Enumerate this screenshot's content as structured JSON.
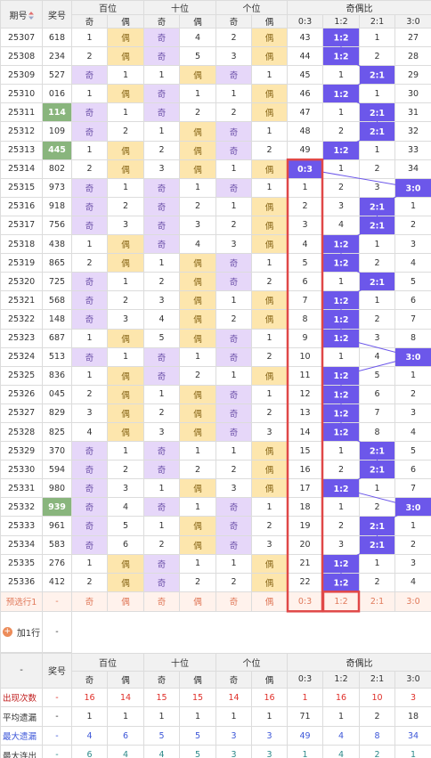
{
  "header": {
    "period_label": "期号",
    "number_label": "奖号",
    "hundreds_label": "百位",
    "tens_label": "十位",
    "units_label": "个位",
    "ratio_label": "奇偶比",
    "odd_label": "奇",
    "even_label": "偶",
    "ratio_cols": [
      "0:3",
      "1:2",
      "2:1",
      "3:0"
    ]
  },
  "rows": [
    {
      "period": "25307",
      "number": "618",
      "hl": false,
      "h": [
        "1",
        "偶"
      ],
      "t": [
        "奇",
        "4"
      ],
      "u": [
        "2",
        "偶"
      ],
      "r": [
        "43",
        "1:2",
        "1",
        "27"
      ],
      "rsel": 1
    },
    {
      "period": "25308",
      "number": "234",
      "hl": false,
      "h": [
        "2",
        "偶"
      ],
      "t": [
        "奇",
        "5"
      ],
      "u": [
        "3",
        "偶"
      ],
      "r": [
        "44",
        "1:2",
        "2",
        "28"
      ],
      "rsel": 1
    },
    {
      "period": "25309",
      "number": "527",
      "hl": false,
      "h": [
        "奇",
        "1"
      ],
      "t": [
        "1",
        "偶"
      ],
      "u": [
        "奇",
        "1"
      ],
      "r": [
        "45",
        "1",
        "2:1",
        "29"
      ],
      "rsel": 2
    },
    {
      "period": "25310",
      "number": "016",
      "hl": false,
      "h": [
        "1",
        "偶"
      ],
      "t": [
        "奇",
        "1"
      ],
      "u": [
        "1",
        "偶"
      ],
      "r": [
        "46",
        "1:2",
        "1",
        "30"
      ],
      "rsel": 1
    },
    {
      "period": "25311",
      "number": "114",
      "hl": true,
      "h": [
        "奇",
        "1"
      ],
      "t": [
        "奇",
        "2"
      ],
      "u": [
        "2",
        "偶"
      ],
      "r": [
        "47",
        "1",
        "2:1",
        "31"
      ],
      "rsel": 2
    },
    {
      "period": "25312",
      "number": "109",
      "hl": false,
      "h": [
        "奇",
        "2"
      ],
      "t": [
        "1",
        "偶"
      ],
      "u": [
        "奇",
        "1"
      ],
      "r": [
        "48",
        "2",
        "2:1",
        "32"
      ],
      "rsel": 2
    },
    {
      "period": "25313",
      "number": "445",
      "hl": true,
      "h": [
        "1",
        "偶"
      ],
      "t": [
        "2",
        "偶"
      ],
      "u": [
        "奇",
        "2"
      ],
      "r": [
        "49",
        "1:2",
        "1",
        "33"
      ],
      "rsel": 1
    },
    {
      "period": "25314",
      "number": "802",
      "hl": false,
      "h": [
        "2",
        "偶"
      ],
      "t": [
        "3",
        "偶"
      ],
      "u": [
        "1",
        "偶"
      ],
      "r": [
        "0:3",
        "1",
        "2",
        "34"
      ],
      "rsel": 0
    },
    {
      "period": "25315",
      "number": "973",
      "hl": false,
      "h": [
        "奇",
        "1"
      ],
      "t": [
        "奇",
        "1"
      ],
      "u": [
        "奇",
        "1"
      ],
      "r": [
        "1",
        "2",
        "3",
        "3:0"
      ],
      "rsel": 3
    },
    {
      "period": "25316",
      "number": "918",
      "hl": false,
      "h": [
        "奇",
        "2"
      ],
      "t": [
        "奇",
        "2"
      ],
      "u": [
        "1",
        "偶"
      ],
      "r": [
        "2",
        "3",
        "2:1",
        "1"
      ],
      "rsel": 2
    },
    {
      "period": "25317",
      "number": "756",
      "hl": false,
      "h": [
        "奇",
        "3"
      ],
      "t": [
        "奇",
        "3"
      ],
      "u": [
        "2",
        "偶"
      ],
      "r": [
        "3",
        "4",
        "2:1",
        "2"
      ],
      "rsel": 2
    },
    {
      "period": "25318",
      "number": "438",
      "hl": false,
      "h": [
        "1",
        "偶"
      ],
      "t": [
        "奇",
        "4"
      ],
      "u": [
        "3",
        "偶"
      ],
      "r": [
        "4",
        "1:2",
        "1",
        "3"
      ],
      "rsel": 1
    },
    {
      "period": "25319",
      "number": "865",
      "hl": false,
      "h": [
        "2",
        "偶"
      ],
      "t": [
        "1",
        "偶"
      ],
      "u": [
        "奇",
        "1"
      ],
      "r": [
        "5",
        "1:2",
        "2",
        "4"
      ],
      "rsel": 1
    },
    {
      "period": "25320",
      "number": "725",
      "hl": false,
      "h": [
        "奇",
        "1"
      ],
      "t": [
        "2",
        "偶"
      ],
      "u": [
        "奇",
        "2"
      ],
      "r": [
        "6",
        "1",
        "2:1",
        "5"
      ],
      "rsel": 2
    },
    {
      "period": "25321",
      "number": "568",
      "hl": false,
      "h": [
        "奇",
        "2"
      ],
      "t": [
        "3",
        "偶"
      ],
      "u": [
        "1",
        "偶"
      ],
      "r": [
        "7",
        "1:2",
        "1",
        "6"
      ],
      "rsel": 1
    },
    {
      "period": "25322",
      "number": "148",
      "hl": false,
      "h": [
        "奇",
        "3"
      ],
      "t": [
        "4",
        "偶"
      ],
      "u": [
        "2",
        "偶"
      ],
      "r": [
        "8",
        "1:2",
        "2",
        "7"
      ],
      "rsel": 1
    },
    {
      "period": "25323",
      "number": "687",
      "hl": false,
      "h": [
        "1",
        "偶"
      ],
      "t": [
        "5",
        "偶"
      ],
      "u": [
        "奇",
        "1"
      ],
      "r": [
        "9",
        "1:2",
        "3",
        "8"
      ],
      "rsel": 1
    },
    {
      "period": "25324",
      "number": "513",
      "hl": false,
      "h": [
        "奇",
        "1"
      ],
      "t": [
        "奇",
        "1"
      ],
      "u": [
        "奇",
        "2"
      ],
      "r": [
        "10",
        "1",
        "4",
        "3:0"
      ],
      "rsel": 3
    },
    {
      "period": "25325",
      "number": "836",
      "hl": false,
      "h": [
        "1",
        "偶"
      ],
      "t": [
        "奇",
        "2"
      ],
      "u": [
        "1",
        "偶"
      ],
      "r": [
        "11",
        "1:2",
        "5",
        "1"
      ],
      "rsel": 1
    },
    {
      "period": "25326",
      "number": "045",
      "hl": false,
      "h": [
        "2",
        "偶"
      ],
      "t": [
        "1",
        "偶"
      ],
      "u": [
        "奇",
        "1"
      ],
      "r": [
        "12",
        "1:2",
        "6",
        "2"
      ],
      "rsel": 1
    },
    {
      "period": "25327",
      "number": "829",
      "hl": false,
      "h": [
        "3",
        "偶"
      ],
      "t": [
        "2",
        "偶"
      ],
      "u": [
        "奇",
        "2"
      ],
      "r": [
        "13",
        "1:2",
        "7",
        "3"
      ],
      "rsel": 1
    },
    {
      "period": "25328",
      "number": "825",
      "hl": false,
      "h": [
        "4",
        "偶"
      ],
      "t": [
        "3",
        "偶"
      ],
      "u": [
        "奇",
        "3"
      ],
      "r": [
        "14",
        "1:2",
        "8",
        "4"
      ],
      "rsel": 1
    },
    {
      "period": "25329",
      "number": "370",
      "hl": false,
      "h": [
        "奇",
        "1"
      ],
      "t": [
        "奇",
        "1"
      ],
      "u": [
        "1",
        "偶"
      ],
      "r": [
        "15",
        "1",
        "2:1",
        "5"
      ],
      "rsel": 2
    },
    {
      "period": "25330",
      "number": "594",
      "h": [
        "奇",
        "2"
      ],
      "t": [
        "奇",
        "2"
      ],
      "u": [
        "2",
        "偶"
      ],
      "r": [
        "16",
        "2",
        "2:1",
        "6"
      ],
      "rsel": 2,
      "hl": false
    },
    {
      "period": "25331",
      "number": "980",
      "hl": false,
      "h": [
        "奇",
        "3"
      ],
      "t": [
        "1",
        "偶"
      ],
      "u": [
        "3",
        "偶"
      ],
      "r": [
        "17",
        "1:2",
        "1",
        "7"
      ],
      "rsel": 1
    },
    {
      "period": "25332",
      "number": "939",
      "hl": true,
      "h": [
        "奇",
        "4"
      ],
      "t": [
        "奇",
        "1"
      ],
      "u": [
        "奇",
        "1"
      ],
      "r": [
        "18",
        "1",
        "2",
        "3:0"
      ],
      "rsel": 3
    },
    {
      "period": "25333",
      "number": "961",
      "hl": false,
      "h": [
        "奇",
        "5"
      ],
      "t": [
        "1",
        "偶"
      ],
      "u": [
        "奇",
        "2"
      ],
      "r": [
        "19",
        "2",
        "2:1",
        "1"
      ],
      "rsel": 2
    },
    {
      "period": "25334",
      "number": "583",
      "hl": false,
      "h": [
        "奇",
        "6"
      ],
      "t": [
        "2",
        "偶"
      ],
      "u": [
        "奇",
        "3"
      ],
      "r": [
        "20",
        "3",
        "2:1",
        "2"
      ],
      "rsel": 2
    },
    {
      "period": "25335",
      "number": "276",
      "hl": false,
      "h": [
        "1",
        "偶"
      ],
      "t": [
        "奇",
        "1"
      ],
      "u": [
        "1",
        "偶"
      ],
      "r": [
        "21",
        "1:2",
        "1",
        "3"
      ],
      "rsel": 1
    },
    {
      "period": "25336",
      "number": "412",
      "hl": false,
      "h": [
        "2",
        "偶"
      ],
      "t": [
        "奇",
        "2"
      ],
      "u": [
        "2",
        "偶"
      ],
      "r": [
        "22",
        "1:2",
        "2",
        "4"
      ],
      "rsel": 1
    }
  ],
  "prediction": {
    "label": "预选行1",
    "number": "-",
    "cells": [
      "奇",
      "偶",
      "奇",
      "偶",
      "奇",
      "偶",
      "0:3",
      "1:2",
      "2:1",
      "3:0"
    ]
  },
  "add_row": {
    "label": "加1行",
    "number": "-"
  },
  "stats_header": {
    "first_label": "-",
    "number_label": "奖号",
    "hundreds_label": "百位",
    "tens_label": "十位",
    "units_label": "个位",
    "ratio_label": "奇偶比",
    "sub": [
      "奇",
      "偶",
      "奇",
      "偶",
      "奇",
      "偶",
      "0:3",
      "1:2",
      "2:1",
      "3:0"
    ]
  },
  "stats": [
    {
      "label": "出现次数",
      "number": "-",
      "values": [
        "16",
        "14",
        "15",
        "15",
        "14",
        "16",
        "1",
        "16",
        "10",
        "3"
      ]
    },
    {
      "label": "平均遗漏",
      "number": "-",
      "values": [
        "1",
        "1",
        "1",
        "1",
        "1",
        "1",
        "71",
        "1",
        "2",
        "18"
      ]
    },
    {
      "label": "最大遗漏",
      "number": "-",
      "values": [
        "4",
        "6",
        "5",
        "5",
        "3",
        "3",
        "49",
        "4",
        "8",
        "34"
      ]
    },
    {
      "label": "最大连出",
      "number": "-",
      "values": [
        "6",
        "4",
        "4",
        "5",
        "3",
        "3",
        "1",
        "4",
        "2",
        "1"
      ]
    }
  ],
  "colors": {
    "odd_bg": "#e6d7f9",
    "even_bg": "#fde6ad",
    "ratio_marker": "#6c57ea",
    "highlight_number": "#89b57d",
    "red_frame": "#e04848",
    "trend_line": "#6c57ea"
  },
  "chart_data": {
    "type": "table",
    "title": "",
    "columns": [
      "期号",
      "奖号",
      "百位奇",
      "百位偶",
      "十位奇",
      "十位偶",
      "个位奇",
      "个位偶",
      "0:3",
      "1:2",
      "2:1",
      "3:0"
    ],
    "ratio_sequence": [
      "1:2",
      "1:2",
      "2:1",
      "1:2",
      "2:1",
      "2:1",
      "1:2",
      "0:3",
      "3:0",
      "2:1",
      "2:1",
      "1:2",
      "1:2",
      "2:1",
      "1:2",
      "1:2",
      "1:2",
      "3:0",
      "1:2",
      "1:2",
      "1:2",
      "1:2",
      "2:1",
      "2:1",
      "1:2",
      "3:0",
      "2:1",
      "2:1",
      "1:2",
      "1:2"
    ],
    "periods": [
      "25307",
      "25308",
      "25309",
      "25310",
      "25311",
      "25312",
      "25313",
      "25314",
      "25315",
      "25316",
      "25317",
      "25318",
      "25319",
      "25320",
      "25321",
      "25322",
      "25323",
      "25324",
      "25325",
      "25326",
      "25327",
      "25328",
      "25329",
      "25330",
      "25331",
      "25332",
      "25333",
      "25334",
      "25335",
      "25336"
    ]
  }
}
